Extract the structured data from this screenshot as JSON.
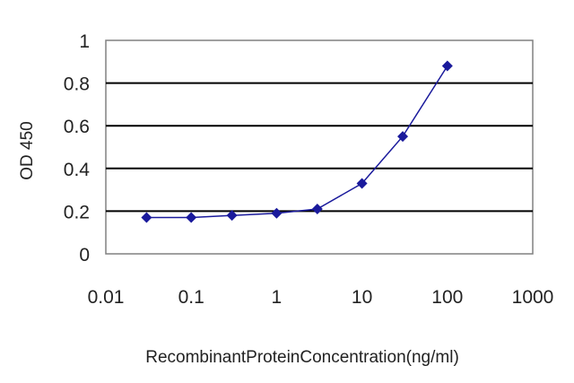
{
  "chart_data": {
    "type": "line",
    "xlabel": "RecombinantProteinConcentration(ng/ml)",
    "ylabel": "OD 450",
    "x_scale": "log",
    "xlim": [
      0.01,
      1000
    ],
    "ylim": [
      0,
      1
    ],
    "x_ticks": [
      "0.01",
      "0.1",
      "1",
      "10",
      "100",
      "1000"
    ],
    "y_ticks": [
      "0",
      "0.2",
      "0.4",
      "0.6",
      "0.8",
      "1"
    ],
    "grid": "horizontal",
    "series": [
      {
        "x": [
          0.03,
          0.1,
          0.3,
          1,
          3,
          10,
          30,
          100
        ],
        "y": [
          0.17,
          0.17,
          0.18,
          0.19,
          0.21,
          0.33,
          0.55,
          0.88
        ]
      }
    ]
  },
  "colors": {
    "series": "#1a1a9c",
    "grid": "#000000",
    "frame": "#808080"
  }
}
